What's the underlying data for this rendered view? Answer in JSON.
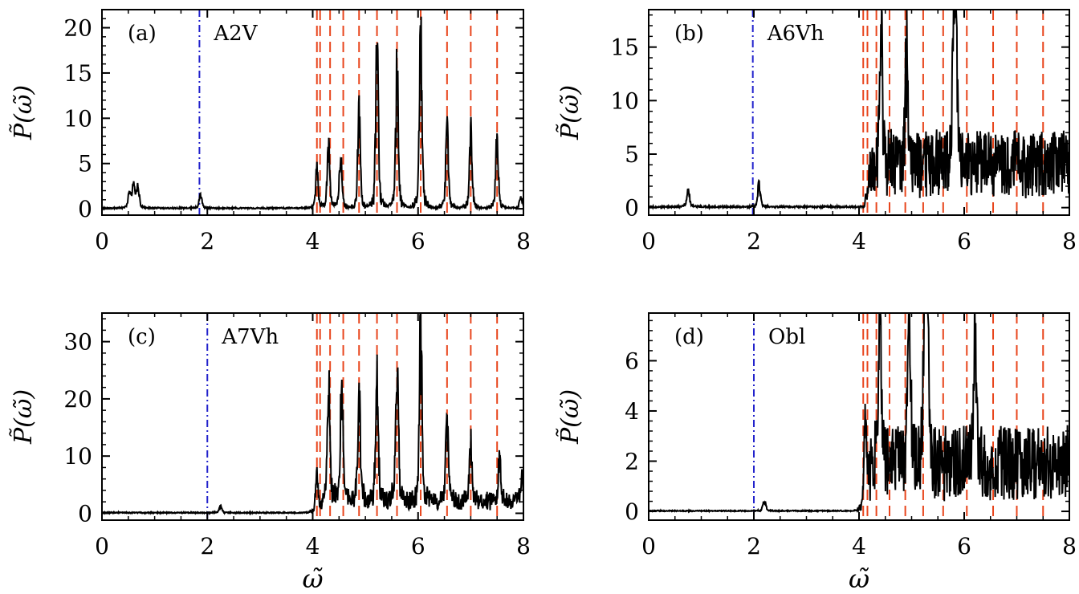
{
  "chart_data": [
    {
      "type": "line",
      "panel_label": "(a)",
      "annotation": "A2V",
      "ylabel": "P̃(ω̃)",
      "xlabel": "",
      "xlim": [
        0,
        8
      ],
      "ylim": [
        -0.7,
        22
      ],
      "xticks": [
        "0",
        "2",
        "4",
        "6",
        "8"
      ],
      "yticks": [
        0,
        5,
        10,
        15,
        20
      ],
      "ytick_labels": [
        "0",
        "5",
        "10",
        "15",
        "20"
      ],
      "blue_line_x": 1.85,
      "red_lines_x": [
        4.08,
        4.14,
        4.33,
        4.58,
        4.88,
        5.22,
        5.6,
        6.05,
        6.55,
        7.0,
        7.5,
        8.0
      ],
      "peaks": [
        {
          "x": 0.52,
          "y": 2.0
        },
        {
          "x": 0.6,
          "y": 2.9
        },
        {
          "x": 0.68,
          "y": 3.0
        },
        {
          "x": 1.87,
          "y": 1.9
        },
        {
          "x": 4.08,
          "y": 4.7
        },
        {
          "x": 4.3,
          "y": 7.9
        },
        {
          "x": 4.53,
          "y": 6.9
        },
        {
          "x": 4.88,
          "y": 11.5
        },
        {
          "x": 5.22,
          "y": 19.5
        },
        {
          "x": 5.6,
          "y": 17.0
        },
        {
          "x": 6.05,
          "y": 22.0
        },
        {
          "x": 6.55,
          "y": 10.5
        },
        {
          "x": 7.0,
          "y": 10.0
        },
        {
          "x": 7.5,
          "y": 8.7
        },
        {
          "x": 7.95,
          "y": 1.6
        }
      ],
      "noise": 0.15
    },
    {
      "type": "line",
      "panel_label": "(b)",
      "annotation": "A6Vh",
      "ylabel": "P̃(ω̃)",
      "xlabel": "",
      "xlim": [
        0,
        8
      ],
      "ylim": [
        -0.7,
        18.5
      ],
      "xticks": [
        "0",
        "2",
        "4",
        "6",
        "8"
      ],
      "yticks": [
        0,
        5,
        10,
        15
      ],
      "ytick_labels": [
        "0",
        "5",
        "10",
        "15"
      ],
      "blue_line_x": 1.98,
      "red_lines_x": [
        4.08,
        4.16,
        4.33,
        4.58,
        4.88,
        5.22,
        5.6,
        6.05,
        6.55,
        7.0,
        7.5
      ],
      "peaks": [
        {
          "x": 0.75,
          "y": 1.9
        },
        {
          "x": 2.1,
          "y": 2.4
        },
        {
          "x": 4.42,
          "y": 14.0
        },
        {
          "x": 4.9,
          "y": 12.0
        },
        {
          "x": 5.8,
          "y": 18.5
        },
        {
          "x": 5.85,
          "y": 13.0
        }
      ],
      "noise_band": {
        "x_start": 4.1,
        "x_end": 8.0,
        "mean": 4.0,
        "amplitude": 3.2
      },
      "noise": 0.15
    },
    {
      "type": "line",
      "panel_label": "(c)",
      "annotation": "A7Vh",
      "ylabel": "P̃(ω̃)",
      "xlabel": "ω̃",
      "xlim": [
        0,
        8
      ],
      "ylim": [
        -1.2,
        35
      ],
      "xticks": [
        "0",
        "2",
        "4",
        "6",
        "8"
      ],
      "yticks": [
        0,
        10,
        20,
        30
      ],
      "ytick_labels": [
        "0",
        "10",
        "20",
        "30"
      ],
      "blue_line_x": 2.0,
      "red_lines_x": [
        4.08,
        4.14,
        4.33,
        4.58,
        4.88,
        5.22,
        5.6,
        6.05,
        6.55,
        7.0,
        7.5,
        8.0
      ],
      "peaks": [
        {
          "x": 2.25,
          "y": 1.2
        },
        {
          "x": 4.08,
          "y": 8.0
        },
        {
          "x": 4.3,
          "y": 22.5
        },
        {
          "x": 4.55,
          "y": 22.0
        },
        {
          "x": 4.88,
          "y": 23.0
        },
        {
          "x": 5.22,
          "y": 25.0
        },
        {
          "x": 5.6,
          "y": 28.5
        },
        {
          "x": 6.05,
          "y": 35.0
        },
        {
          "x": 6.55,
          "y": 16.0
        },
        {
          "x": 7.0,
          "y": 13.0
        },
        {
          "x": 7.55,
          "y": 8.5
        },
        {
          "x": 7.97,
          "y": 5.5
        }
      ],
      "noise_band": {
        "x_start": 4.1,
        "x_end": 8.0,
        "mean": 2.0,
        "amplitude": 1.6
      },
      "noise": 0.2
    },
    {
      "type": "line",
      "panel_label": "(d)",
      "annotation": "Obl",
      "ylabel": "P̃(ω̃)",
      "xlabel": "ω̃",
      "xlim": [
        0,
        8
      ],
      "ylim": [
        -0.35,
        7.9
      ],
      "xticks": [
        "0",
        "2",
        "4",
        "6",
        "8"
      ],
      "yticks": [
        0,
        2,
        4,
        6
      ],
      "ytick_labels": [
        "0",
        "2",
        "4",
        "6"
      ],
      "blue_line_x": 2.0,
      "red_lines_x": [
        4.08,
        4.16,
        4.33,
        4.58,
        4.88,
        5.22,
        5.6,
        6.05,
        6.55,
        7.0,
        7.5
      ],
      "peaks": [
        {
          "x": 2.2,
          "y": 0.5
        },
        {
          "x": 4.12,
          "y": 4.4
        },
        {
          "x": 4.4,
          "y": 6.4
        },
        {
          "x": 4.95,
          "y": 7.9
        },
        {
          "x": 5.25,
          "y": 7.2
        },
        {
          "x": 5.3,
          "y": 6.9
        },
        {
          "x": 6.2,
          "y": 6.6
        }
      ],
      "noise_band": {
        "x_start": 4.1,
        "x_end": 8.0,
        "mean": 1.9,
        "amplitude": 1.5
      },
      "noise": 0.04
    }
  ]
}
